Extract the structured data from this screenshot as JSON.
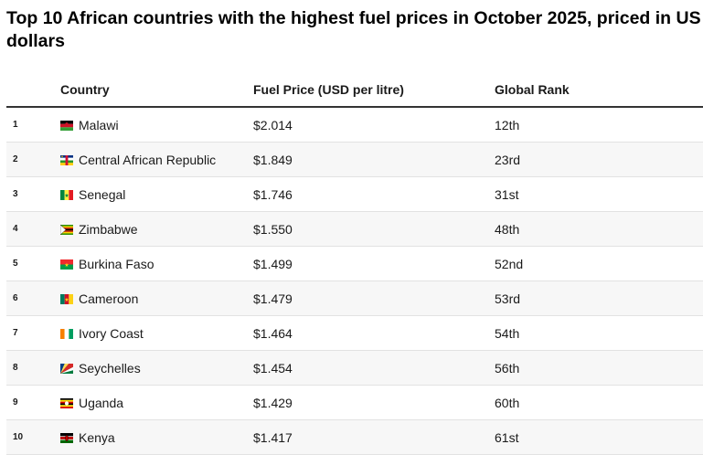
{
  "chart_data": {
    "type": "table",
    "title": "Top 10 African countries with the highest fuel prices in October 2025, priced in US dollars",
    "columns": [
      "",
      "Country",
      "Fuel Price (USD per litre)",
      "Global Rank"
    ],
    "rows": [
      {
        "rank": "1",
        "country": "Malawi",
        "price": "$2.014",
        "global_rank": "12th",
        "flag": "malawi-flag-icon"
      },
      {
        "rank": "2",
        "country": "Central African Republic",
        "price": "$1.849",
        "global_rank": "23rd",
        "flag": "central-african-republic-flag-icon"
      },
      {
        "rank": "3",
        "country": "Senegal",
        "price": "$1.746",
        "global_rank": "31st",
        "flag": "senegal-flag-icon"
      },
      {
        "rank": "4",
        "country": "Zimbabwe",
        "price": "$1.550",
        "global_rank": "48th",
        "flag": "zimbabwe-flag-icon"
      },
      {
        "rank": "5",
        "country": "Burkina Faso",
        "price": "$1.499",
        "global_rank": "52nd",
        "flag": "burkina-faso-flag-icon"
      },
      {
        "rank": "6",
        "country": "Cameroon",
        "price": "$1.479",
        "global_rank": "53rd",
        "flag": "cameroon-flag-icon"
      },
      {
        "rank": "7",
        "country": "Ivory Coast",
        "price": "$1.464",
        "global_rank": "54th",
        "flag": "ivory-coast-flag-icon"
      },
      {
        "rank": "8",
        "country": "Seychelles",
        "price": "$1.454",
        "global_rank": "56th",
        "flag": "seychelles-flag-icon"
      },
      {
        "rank": "9",
        "country": "Uganda",
        "price": "$1.429",
        "global_rank": "60th",
        "flag": "uganda-flag-icon"
      },
      {
        "rank": "10",
        "country": "Kenya",
        "price": "$1.417",
        "global_rank": "61st",
        "flag": "kenya-flag-icon"
      }
    ]
  }
}
